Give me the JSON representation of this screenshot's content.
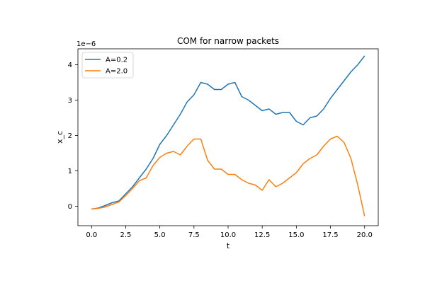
{
  "chart_data": {
    "type": "line",
    "title": "COM for narrow packets",
    "xlabel": "t",
    "ylabel": "x_c",
    "y_offset_label": "1e−6",
    "xlim": [
      -1.0,
      21.0
    ],
    "ylim": [
      -0.55,
      4.45
    ],
    "xticks": [
      0.0,
      2.5,
      5.0,
      7.5,
      10.0,
      12.5,
      15.0,
      17.5,
      20.0
    ],
    "xtick_labels": [
      "0.0",
      "2.5",
      "5.0",
      "7.5",
      "10.0",
      "12.5",
      "15.0",
      "17.5",
      "20.0"
    ],
    "yticks": [
      0,
      1,
      2,
      3,
      4
    ],
    "ytick_labels": [
      "0",
      "1",
      "2",
      "3",
      "4"
    ],
    "grid": false,
    "legend_position": "top-left",
    "series": [
      {
        "name": "A=0.2",
        "color": "#1f77b4",
        "x": [
          0,
          0.5,
          1,
          1.5,
          2,
          2.5,
          3,
          3.5,
          4,
          4.5,
          5,
          5.5,
          6,
          6.5,
          7,
          7.5,
          8,
          8.5,
          9,
          9.5,
          10,
          10.5,
          11,
          11.5,
          12,
          12.5,
          13,
          13.5,
          14,
          14.5,
          15,
          15.5,
          16,
          16.5,
          17,
          17.5,
          18,
          18.5,
          19,
          19.5,
          20
        ],
        "values": [
          -0.08,
          -0.05,
          0.02,
          0.1,
          0.15,
          0.35,
          0.55,
          0.8,
          1.05,
          1.35,
          1.75,
          2.0,
          2.3,
          2.6,
          2.95,
          3.15,
          3.5,
          3.45,
          3.3,
          3.3,
          3.45,
          3.5,
          3.1,
          3.0,
          2.85,
          2.7,
          2.75,
          2.6,
          2.65,
          2.65,
          2.4,
          2.3,
          2.5,
          2.55,
          2.75,
          3.05,
          3.3,
          3.55,
          3.8,
          4.0,
          4.25
        ]
      },
      {
        "name": "A=2.0",
        "color": "#ff7f0e",
        "x": [
          0,
          0.5,
          1,
          1.5,
          2,
          2.5,
          3,
          3.5,
          4,
          4.5,
          5,
          5.5,
          6,
          6.5,
          7,
          7.5,
          8,
          8.5,
          9,
          9.5,
          10,
          10.5,
          11,
          11.5,
          12,
          12.5,
          13,
          13.5,
          14,
          14.5,
          15,
          15.5,
          16,
          16.5,
          17,
          17.5,
          18,
          18.5,
          19,
          19.5,
          20
        ],
        "values": [
          -0.08,
          -0.06,
          -0.02,
          0.05,
          0.12,
          0.3,
          0.5,
          0.72,
          0.8,
          1.15,
          1.38,
          1.5,
          1.55,
          1.45,
          1.7,
          1.9,
          1.9,
          1.3,
          1.05,
          1.05,
          0.9,
          0.9,
          0.75,
          0.65,
          0.6,
          0.45,
          0.75,
          0.55,
          0.65,
          0.8,
          0.95,
          1.2,
          1.35,
          1.45,
          1.7,
          1.9,
          1.98,
          1.8,
          1.35,
          0.6,
          -0.28
        ]
      }
    ]
  }
}
